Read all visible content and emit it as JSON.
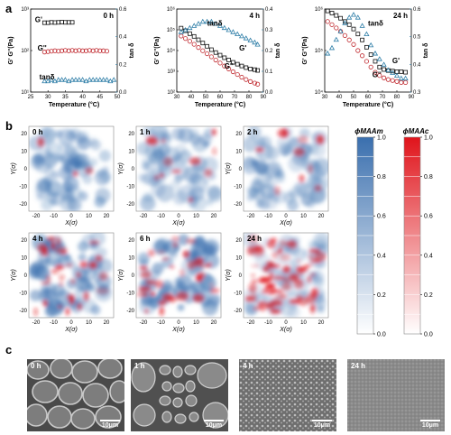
{
  "panels": {
    "a": "a",
    "b": "b",
    "c": "c"
  },
  "rheology": {
    "colors": {
      "gp": "#111111",
      "gpp": "#c0282e",
      "tand": "#2b7ca6"
    },
    "axis": {
      "xlabel": "Temperature (°C)",
      "ylabel": "G' G''(Pa)",
      "y2label": "tan δ"
    },
    "series_labels": {
      "gp": "G'",
      "gpp": "G''",
      "tand": "tanδ"
    }
  },
  "chart_data": [
    {
      "type": "scatter",
      "title": "0 h",
      "xlim": [
        25,
        50
      ],
      "ylim_log": [
        1,
        1000
      ],
      "y2lim": [
        0,
        0.6
      ],
      "xticks": [
        "25",
        "30",
        "35",
        "40",
        "45",
        "50"
      ],
      "yticks": [
        "10¹",
        "10²",
        "10³"
      ],
      "y2ticks": [
        "0.0",
        "0.2",
        "0.4",
        "0.6"
      ],
      "series": [
        {
          "name": "G'",
          "axis": "left",
          "x": [
            29,
            30,
            31,
            32,
            33,
            34,
            35,
            36,
            37
          ],
          "y": [
            320,
            320,
            330,
            325,
            330,
            335,
            330,
            330,
            330
          ]
        },
        {
          "name": "G''",
          "axis": "left",
          "x": [
            29,
            30,
            31,
            32,
            33,
            34,
            35,
            36,
            37,
            38,
            39,
            40,
            41,
            42,
            43,
            44,
            45,
            46,
            47
          ],
          "y": [
            28,
            29,
            30,
            31,
            30,
            31,
            32,
            31,
            32,
            31,
            32,
            31,
            31,
            32,
            31,
            32,
            31,
            31,
            30
          ]
        },
        {
          "name": "tanδ",
          "axis": "right",
          "x": [
            29,
            30,
            31,
            32,
            33,
            34,
            35,
            36,
            37,
            38,
            39,
            40,
            41,
            42,
            43,
            44,
            45,
            46,
            47,
            48,
            49
          ],
          "y": [
            0.08,
            0.08,
            0.09,
            0.08,
            0.09,
            0.09,
            0.09,
            0.08,
            0.09,
            0.09,
            0.09,
            0.09,
            0.08,
            0.09,
            0.09,
            0.09,
            0.09,
            0.09,
            0.09,
            0.08,
            0.09
          ]
        }
      ]
    },
    {
      "type": "scatter",
      "title": "4 h",
      "xlim": [
        30,
        90
      ],
      "ylim_log": [
        100,
        1000000
      ],
      "y2lim": [
        0,
        0.4
      ],
      "xticks": [
        "30",
        "40",
        "50",
        "60",
        "70",
        "80",
        "90"
      ],
      "yticks": [
        "10²",
        "10³",
        "10⁴",
        "10⁵",
        "10⁶"
      ],
      "y2ticks": [
        "0.0",
        "0.1",
        "0.2",
        "0.3",
        "0.4"
      ],
      "series": [
        {
          "name": "G'",
          "axis": "left",
          "x": [
            33,
            36,
            39,
            42,
            45,
            48,
            51,
            54,
            57,
            60,
            63,
            66,
            69,
            72,
            75,
            78,
            81,
            84,
            86
          ],
          "y": [
            120000,
            90000,
            65000,
            48000,
            33000,
            23000,
            16000,
            11000,
            8000,
            6000,
            4500,
            3500,
            2700,
            2200,
            1800,
            1500,
            1300,
            1200,
            1100
          ]
        },
        {
          "name": "G''",
          "axis": "left",
          "x": [
            33,
            36,
            39,
            42,
            45,
            48,
            51,
            54,
            57,
            60,
            63,
            66,
            69,
            72,
            75,
            78,
            81,
            84,
            86
          ],
          "y": [
            50000,
            38000,
            28000,
            20000,
            14000,
            9800,
            7000,
            5000,
            3500,
            2500,
            1800,
            1300,
            950,
            700,
            520,
            400,
            320,
            270,
            240
          ]
        },
        {
          "name": "tanδ",
          "axis": "right",
          "x": [
            33,
            36,
            39,
            42,
            45,
            48,
            51,
            54,
            57,
            60,
            63,
            66,
            69,
            72,
            75,
            78,
            81,
            84,
            86
          ],
          "y": [
            0.29,
            0.3,
            0.31,
            0.32,
            0.33,
            0.34,
            0.34,
            0.34,
            0.33,
            0.32,
            0.31,
            0.3,
            0.29,
            0.28,
            0.27,
            0.26,
            0.25,
            0.24,
            0.23
          ]
        }
      ]
    },
    {
      "type": "scatter",
      "title": "24 h",
      "xlim": [
        30,
        90
      ],
      "ylim_log": [
        10000,
        1000000
      ],
      "y2lim": [
        0.3,
        0.6
      ],
      "xticks": [
        "30",
        "40",
        "50",
        "60",
        "70",
        "80",
        "90"
      ],
      "yticks": [
        "10⁴",
        "10⁵",
        "10⁶"
      ],
      "y2ticks": [
        "0.3",
        "0.4",
        "0.5",
        "0.6"
      ],
      "series": [
        {
          "name": "G'",
          "axis": "left",
          "x": [
            32,
            35,
            38,
            41,
            44,
            47,
            50,
            53,
            56,
            59,
            62,
            65,
            68,
            71,
            74,
            77,
            80,
            83,
            86
          ],
          "y": [
            900000,
            800000,
            700000,
            600000,
            500000,
            420000,
            330000,
            250000,
            180000,
            120000,
            80000,
            55000,
            40000,
            35000,
            33000,
            32000,
            31000,
            31000,
            30000
          ]
        },
        {
          "name": "G''",
          "axis": "left",
          "x": [
            32,
            35,
            38,
            41,
            44,
            47,
            50,
            53,
            56,
            59,
            62,
            65,
            68,
            71,
            74,
            77,
            80,
            83,
            86
          ],
          "y": [
            500000,
            420000,
            350000,
            290000,
            230000,
            180000,
            140000,
            100000,
            75000,
            55000,
            40000,
            30000,
            25000,
            22000,
            20000,
            19000,
            18000,
            17000,
            17000
          ]
        },
        {
          "name": "tanδ",
          "axis": "right",
          "x": [
            32,
            35,
            38,
            41,
            44,
            47,
            50,
            53,
            56,
            59,
            62,
            65,
            68,
            71,
            74,
            77,
            80,
            83,
            86
          ],
          "y": [
            0.44,
            0.46,
            0.49,
            0.52,
            0.55,
            0.57,
            0.58,
            0.57,
            0.54,
            0.51,
            0.47,
            0.44,
            0.42,
            0.4,
            0.38,
            0.37,
            0.36,
            0.35,
            0.35
          ]
        }
      ]
    }
  ],
  "maps": {
    "titles": [
      "0 h",
      "1 h",
      "2 h",
      "4 h",
      "6 h",
      "24 h"
    ],
    "red_level": [
      0.04,
      0.15,
      0.12,
      0.4,
      0.45,
      0.85
    ],
    "blue_level": [
      0.5,
      0.45,
      0.45,
      0.6,
      0.6,
      0.35
    ],
    "xlabel": "X(σ)",
    "ylabel": "Y(σ)",
    "ticks": [
      "-20",
      "-10",
      "0",
      "10",
      "20"
    ]
  },
  "colorbars": {
    "left_label": "ϕMAAm",
    "right_label": "ϕMAAc",
    "ticks": [
      "1.0",
      "0.8",
      "0.6",
      "0.4",
      "0.2",
      "0.0"
    ],
    "left_color": "#3a6fae",
    "right_color": "#e0141b"
  },
  "sem": {
    "titles": [
      "0 h",
      "1 h",
      "4 h",
      "24 h"
    ],
    "scale": "10μm"
  }
}
